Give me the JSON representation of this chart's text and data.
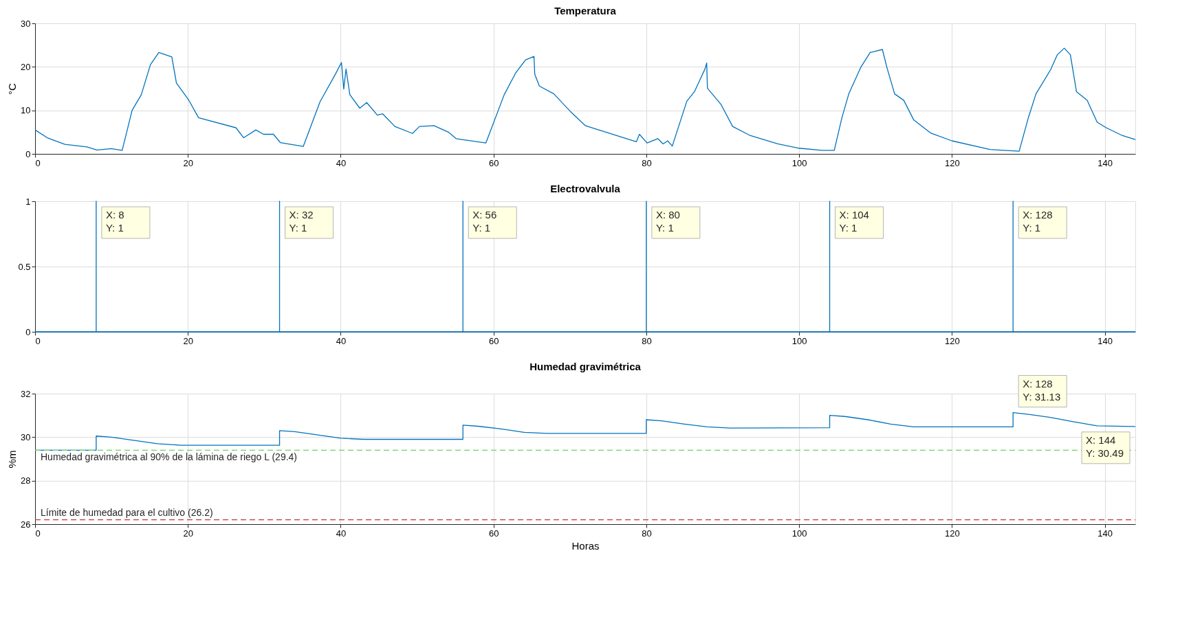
{
  "chart_data": [
    {
      "type": "line",
      "title": "Temperatura",
      "ylabel": "°C",
      "xlim": [
        0,
        144
      ],
      "xticks": [
        0,
        20,
        40,
        60,
        80,
        100,
        120,
        140
      ],
      "ylim": [
        0,
        30
      ],
      "yticks": [
        0,
        10,
        20,
        30
      ],
      "grid": true,
      "series": [
        {
          "color": "#0072bd",
          "x": [
            0,
            1.6,
            3.9,
            6.8,
            8.1,
            10,
            11.4,
            12.7,
            13.9,
            15.1,
            16.2,
            17.9,
            18.5,
            20.1,
            21.4,
            26.3,
            27.3,
            28.9,
            29.9,
            31.2,
            32.1,
            35.1,
            37.3,
            39.3,
            40.1,
            40.4,
            40.7,
            41.2,
            42.5,
            43.4,
            44.8,
            45.5,
            47.1,
            49.4,
            50.3,
            52.2,
            54.1,
            55.1,
            59,
            61.4,
            62.9,
            64.2,
            65.3,
            65.4,
            66,
            67.9,
            70.2,
            72,
            78.7,
            79.1,
            80.1,
            81.5,
            82.2,
            82.8,
            83.4,
            85.3,
            86.3,
            87.7,
            87.9,
            88,
            89.8,
            91.3,
            93.5,
            97.2,
            100,
            103,
            104.6,
            105.6,
            106.5,
            108.1,
            109.3,
            110.9,
            111.5,
            112.5,
            113.7,
            115,
            117.2,
            120,
            125,
            128.8,
            130,
            131,
            132.9,
            133.8,
            134.7,
            135.5,
            136.3,
            137.7,
            139,
            140.2,
            142.2,
            144
          ],
          "values": [
            5.5,
            3.7,
            2.2,
            1.6,
            0.9,
            1.2,
            0.8,
            10,
            13.6,
            20.5,
            23.3,
            22.3,
            16.3,
            12.4,
            8.3,
            6,
            3.7,
            5.5,
            4.5,
            4.5,
            2.6,
            1.7,
            12,
            18.3,
            21,
            14.9,
            19.5,
            13.6,
            10.5,
            11.8,
            8.9,
            9.2,
            6.3,
            4.7,
            6.3,
            6.5,
            5,
            3.5,
            2.5,
            13.6,
            18.6,
            21.6,
            22.4,
            18.3,
            15.6,
            13.8,
            9.5,
            6.5,
            2.8,
            4.5,
            2.5,
            3.5,
            2.3,
            3,
            1.8,
            12.1,
            14.3,
            19.6,
            20.9,
            15.1,
            11.3,
            6.3,
            4.3,
            2.3,
            1.3,
            0.8,
            0.8,
            8.3,
            13.8,
            20,
            23.3,
            24,
            19.8,
            13.8,
            12.3,
            7.8,
            4.8,
            3,
            1,
            0.6,
            8.3,
            13.8,
            19.3,
            22.8,
            24.3,
            22.8,
            14.3,
            12.3,
            7.3,
            6,
            4.3,
            3.3
          ]
        }
      ]
    },
    {
      "type": "line",
      "title": "Electrovalvula",
      "xlim": [
        0,
        144
      ],
      "xticks": [
        0,
        20,
        40,
        60,
        80,
        100,
        120,
        140
      ],
      "ylim": [
        0,
        1
      ],
      "yticks": [
        0,
        0.5,
        1
      ],
      "grid": true,
      "series": [
        {
          "color": "#0072bd",
          "x": [
            0,
            8,
            8,
            8,
            32,
            32,
            32,
            56,
            56,
            56,
            80,
            80,
            80,
            104,
            104,
            104,
            128,
            128,
            128,
            144
          ],
          "values": [
            0,
            0,
            1,
            0,
            0,
            1,
            0,
            0,
            1,
            0,
            0,
            1,
            0,
            0,
            1,
            0,
            0,
            1,
            0,
            0
          ]
        }
      ],
      "annotations": [
        {
          "text": "X: 8\nY: 1",
          "x": 8,
          "y": 1
        },
        {
          "text": "X: 32\nY: 1",
          "x": 32,
          "y": 1
        },
        {
          "text": "X: 56\nY: 1",
          "x": 56,
          "y": 1
        },
        {
          "text": "X: 80\nY: 1",
          "x": 80,
          "y": 1
        },
        {
          "text": "X: 104\nY: 1",
          "x": 104,
          "y": 1
        },
        {
          "text": "X: 128\nY: 1",
          "x": 128,
          "y": 1
        }
      ]
    },
    {
      "type": "line",
      "title": "Humedad gravimétrica",
      "xlabel": "Horas",
      "ylabel": "%m",
      "xlim": [
        0,
        144
      ],
      "xticks": [
        0,
        20,
        40,
        60,
        80,
        100,
        120,
        140
      ],
      "ylim": [
        26,
        32
      ],
      "yticks": [
        26,
        28,
        30,
        32
      ],
      "grid": true,
      "series": [
        {
          "color": "#0072bd",
          "x": [
            0,
            8,
            8,
            10,
            13,
            16,
            19,
            32,
            32,
            34,
            37,
            40,
            43,
            56,
            56,
            58,
            61,
            64,
            67,
            80,
            80,
            82,
            85,
            88,
            91,
            104,
            104,
            106,
            109,
            112,
            115,
            128,
            128,
            130,
            133,
            136,
            139,
            144
          ],
          "values": [
            29.4,
            29.4,
            30.05,
            30.0,
            29.85,
            29.7,
            29.63,
            29.63,
            30.3,
            30.25,
            30.1,
            29.95,
            29.9,
            29.9,
            30.55,
            30.5,
            30.38,
            30.22,
            30.17,
            30.17,
            30.8,
            30.75,
            30.6,
            30.47,
            30.42,
            30.43,
            31.0,
            30.95,
            30.8,
            30.6,
            30.47,
            30.47,
            31.13,
            31.05,
            30.9,
            30.7,
            30.52,
            30.49
          ]
        }
      ],
      "ref_lines": [
        {
          "axis": "y",
          "value": 29.4,
          "label": "Humedad gravimétrica al 90% de la lámina de riego L (29.4)",
          "color": "#6ad06a",
          "line_style": "dashed"
        },
        {
          "axis": "y",
          "value": 26.2,
          "label": "Límite de humedad para el cultivo (26.2)",
          "color": "#c8323c",
          "line_style": "dashed"
        }
      ],
      "annotations": [
        {
          "text": "X: 128\nY: 31.13",
          "x": 128,
          "y": 31.13
        },
        {
          "text": "X: 144\nY: 30.49",
          "x": 144,
          "y": 30.49
        }
      ]
    }
  ]
}
